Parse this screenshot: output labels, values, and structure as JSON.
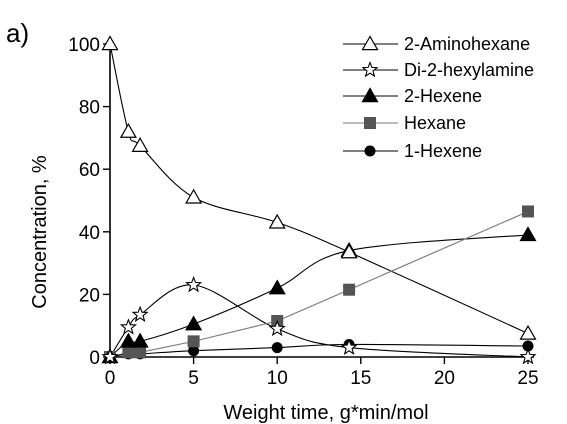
{
  "panel_label": "a)",
  "chart_data": {
    "type": "line",
    "title": "",
    "xlabel": "Weight time, g*min/mol",
    "ylabel": "Concentration, %",
    "xlim": [
      0,
      25
    ],
    "ylim": [
      0,
      100
    ],
    "xticks": [
      0,
      5,
      10,
      15,
      20,
      25
    ],
    "yticks": [
      0,
      20,
      40,
      60,
      80,
      100
    ],
    "grid": false,
    "legend_position": "top-right",
    "series": [
      {
        "name": "2-Aminohexane",
        "marker": "triangle-open",
        "color": "#000000",
        "x": [
          0,
          1.1,
          1.8,
          5,
          10,
          14.3,
          25
        ],
        "y": [
          100,
          72,
          67.5,
          51,
          43,
          33.5,
          7.5
        ]
      },
      {
        "name": "Di-2-hexylamine",
        "marker": "star-open",
        "color": "#000000",
        "x": [
          0,
          1.1,
          1.8,
          5,
          10,
          14.3,
          25
        ],
        "y": [
          0,
          9.5,
          13.5,
          23,
          9,
          3,
          0
        ]
      },
      {
        "name": "2-Hexene",
        "marker": "triangle-filled",
        "color": "#000000",
        "x": [
          0,
          1.1,
          1.8,
          5,
          10,
          14.3,
          25
        ],
        "y": [
          0,
          5,
          5,
          10.5,
          22,
          34,
          39
        ]
      },
      {
        "name": "Hexane",
        "marker": "square-filled",
        "color": "#555555",
        "x": [
          0,
          1.1,
          1.8,
          5,
          10,
          14.3,
          25
        ],
        "y": [
          0,
          1.5,
          1.5,
          5,
          11.5,
          21.5,
          46.5
        ]
      },
      {
        "name": "1-Hexene",
        "marker": "circle-filled",
        "color": "#000000",
        "x": [
          0,
          1.1,
          1.8,
          5,
          10,
          14.3,
          25
        ],
        "y": [
          0,
          1,
          1,
          2,
          3,
          4,
          3.5
        ]
      }
    ]
  }
}
